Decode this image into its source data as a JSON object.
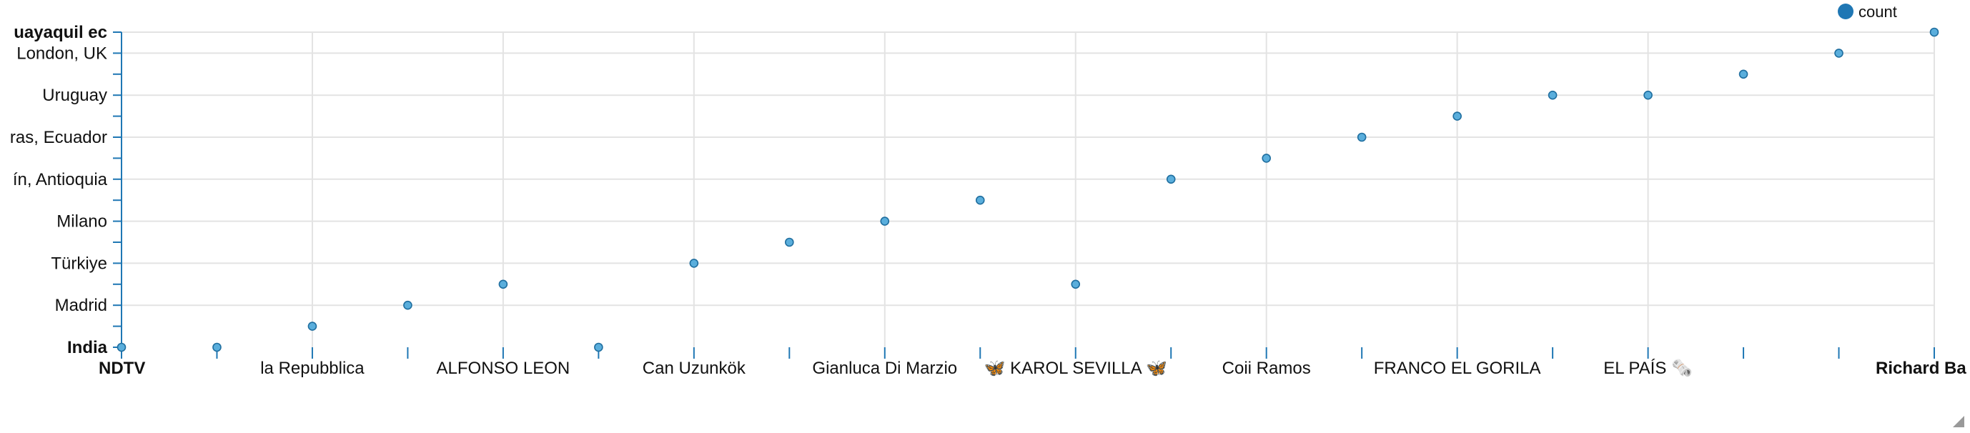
{
  "chart_data": {
    "type": "scatter",
    "title": "",
    "xlabel": "",
    "ylabel": "",
    "legend": {
      "label": "count",
      "position": "top-right"
    },
    "colors": {
      "point": "#5aaedc",
      "point_stroke": "#1f6e9f",
      "axis": "#1f77b4",
      "grid": "#e3e3e3",
      "legend_dot": "#1f77b4"
    },
    "x_categories": [
      "NDTV",
      "",
      "la Repubblica",
      "",
      "ALFONSO LEON",
      "",
      "Can Uzunkök",
      "",
      "Gianluca Di Marzio",
      "",
      "🦋 KAROL SEVILLA 🦋",
      "",
      "Coii Ramos",
      "",
      "FRANCO EL GORILA",
      "",
      "EL PAÍS 🗞️",
      "",
      "",
      "Richard Ba"
    ],
    "x_bold": [
      "NDTV",
      "Richard Ba"
    ],
    "y_categories": [
      "India",
      "",
      "Madrid",
      "",
      "Türkiye",
      "",
      "Milano",
      "",
      "ín, Antioquia",
      "",
      "ras, Ecuador",
      "",
      "Uruguay",
      "",
      "London, UK",
      "uayaquil ec"
    ],
    "y_bold": [
      "India",
      "uayaquil ec"
    ],
    "points": [
      {
        "x": 0,
        "y": 0
      },
      {
        "x": 1,
        "y": 0
      },
      {
        "x": 2,
        "y": 1
      },
      {
        "x": 3,
        "y": 2
      },
      {
        "x": 4,
        "y": 3
      },
      {
        "x": 5,
        "y": 0
      },
      {
        "x": 6,
        "y": 4
      },
      {
        "x": 7,
        "y": 5
      },
      {
        "x": 8,
        "y": 6
      },
      {
        "x": 9,
        "y": 7
      },
      {
        "x": 10,
        "y": 3
      },
      {
        "x": 11,
        "y": 8
      },
      {
        "x": 12,
        "y": 9
      },
      {
        "x": 13,
        "y": 10
      },
      {
        "x": 14,
        "y": 11
      },
      {
        "x": 15,
        "y": 12
      },
      {
        "x": 16,
        "y": 12
      },
      {
        "x": 17,
        "y": 13
      },
      {
        "x": 18,
        "y": 14
      },
      {
        "x": 19,
        "y": 15
      }
    ]
  }
}
